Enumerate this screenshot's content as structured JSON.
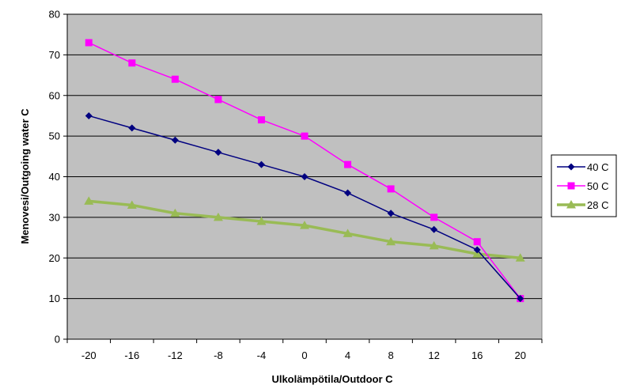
{
  "chart_data": {
    "type": "line",
    "x": [
      -20,
      -16,
      -12,
      -8,
      -4,
      0,
      4,
      8,
      12,
      16,
      20
    ],
    "xlabel": "Ulkolämpötila/Outdoor C",
    "ylabel": "Menovesi/Outgoing water C",
    "ylim": [
      0,
      80
    ],
    "yticks": [
      0,
      10,
      20,
      30,
      40,
      50,
      60,
      70,
      80
    ],
    "grid": true,
    "plot_background": "#c0c0c0",
    "legend_position": "right",
    "series": [
      {
        "name": "40 C",
        "color": "#000080",
        "marker": "diamond",
        "values": [
          55,
          52,
          49,
          46,
          43,
          40,
          36,
          31,
          27,
          22,
          10
        ]
      },
      {
        "name": "50 C",
        "color": "#ff00ff",
        "marker": "square",
        "values": [
          73,
          68,
          64,
          59,
          54,
          50,
          43,
          37,
          30,
          24,
          10
        ]
      },
      {
        "name": "28 C",
        "color": "#99bb55",
        "marker": "triangle",
        "values": [
          34,
          33,
          31,
          30,
          29,
          28,
          26,
          24,
          23,
          21,
          20
        ]
      }
    ]
  }
}
